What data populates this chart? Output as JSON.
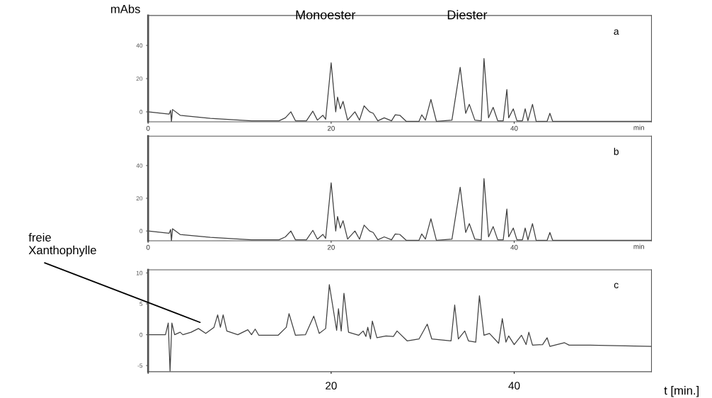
{
  "chart_data": [
    {
      "type": "line",
      "title": "a",
      "ylabel": "mAbs",
      "xlabel": "min",
      "xlim": [
        0,
        55
      ],
      "ylim": [
        -6,
        58
      ],
      "xticks": [
        0,
        20,
        40
      ],
      "yticks": [
        0,
        20,
        40
      ],
      "grid": false,
      "annotations": [
        "Monoester",
        "Diester"
      ],
      "series": [
        {
          "color": "#404040",
          "x": [
            0,
            2.3,
            2.46,
            2.55,
            2.67,
            3.5,
            6.8,
            11.3,
            14.3,
            15.0,
            15.6,
            16.1,
            17.3,
            18.0,
            18.5,
            19.1,
            19.4,
            20.0,
            20.5,
            20.7,
            21.0,
            21.3,
            21.8,
            22.6,
            23.1,
            23.6,
            24.2,
            24.6,
            25.1,
            25.8,
            26.6,
            27.0,
            27.5,
            28.2,
            29.6,
            29.9,
            30.3,
            30.9,
            31.5,
            33.2,
            34.1,
            34.7,
            35.1,
            35.7,
            36.4,
            36.7,
            37.2,
            37.7,
            38.2,
            38.8,
            39.2,
            39.4,
            39.9,
            40.3,
            40.9,
            41.2,
            41.5,
            42.0,
            42.4,
            43.6,
            43.9,
            44.2,
            46.2,
            55
          ],
          "values": [
            0,
            -1.4,
            0.9,
            -6,
            1.4,
            -2.1,
            -3.9,
            -5.4,
            -5.4,
            -3.6,
            0,
            -5.4,
            -5.4,
            0.4,
            -5,
            -2.1,
            -4.5,
            29.5,
            0,
            8.9,
            1.8,
            6.3,
            -5,
            0,
            -5,
            3.6,
            0,
            -0.9,
            -5.4,
            -3.6,
            -5.4,
            -1.8,
            -2.1,
            -5.7,
            -5.7,
            -1.8,
            -5,
            7.5,
            -5.7,
            -5,
            26.8,
            -0.9,
            4.5,
            -5,
            -5.4,
            32.1,
            -3.6,
            2.7,
            -5.4,
            -5.4,
            13.4,
            -3.6,
            1.8,
            -5.4,
            -5.4,
            1.8,
            -5.4,
            4.5,
            -5.7,
            -5.7,
            -0.9,
            -5.7,
            -5.7,
            -5.7
          ]
        }
      ]
    },
    {
      "type": "line",
      "title": "b",
      "xlabel": "min",
      "xlim": [
        0,
        55
      ],
      "ylim": [
        -6,
        58
      ],
      "xticks": [
        0,
        20,
        40
      ],
      "yticks": [
        0,
        20,
        40
      ],
      "grid": false,
      "series": [
        {
          "color": "#404040",
          "x": [
            0,
            2.3,
            2.46,
            2.55,
            2.67,
            3.5,
            6.8,
            11.3,
            14.3,
            15.0,
            15.6,
            16.1,
            17.3,
            18.0,
            18.5,
            19.1,
            19.4,
            20.0,
            20.5,
            20.7,
            21.0,
            21.3,
            21.8,
            22.6,
            23.1,
            23.6,
            24.2,
            24.6,
            25.1,
            25.8,
            26.6,
            27.0,
            27.5,
            28.2,
            29.6,
            29.9,
            30.3,
            30.9,
            31.5,
            33.2,
            34.1,
            34.7,
            35.1,
            35.7,
            36.4,
            36.7,
            37.2,
            37.7,
            38.2,
            38.8,
            39.2,
            39.4,
            39.9,
            40.3,
            40.9,
            41.2,
            41.5,
            42.0,
            42.4,
            43.6,
            43.9,
            44.2,
            46.2,
            55
          ],
          "values": [
            0,
            -1.4,
            0.9,
            -6,
            1.4,
            -2.1,
            -3.9,
            -5.4,
            -5.4,
            -3.6,
            0,
            -5.4,
            -5.4,
            0.4,
            -5,
            -2.1,
            -4.5,
            29.5,
            0,
            8.9,
            1.8,
            6.3,
            -5,
            0,
            -5,
            3.6,
            0,
            -0.9,
            -5.4,
            -3.6,
            -5.4,
            -1.8,
            -2.1,
            -5.7,
            -5.7,
            -1.8,
            -5,
            7.5,
            -5.7,
            -5,
            26.8,
            -0.9,
            4.5,
            -5,
            -5.4,
            32.1,
            -3.6,
            2.7,
            -5.4,
            -5.4,
            13.4,
            -3.6,
            1.8,
            -5.4,
            -5.4,
            1.8,
            -5.4,
            4.5,
            -5.7,
            -5.7,
            -0.9,
            -5.7,
            -5.7,
            -5.7
          ]
        }
      ]
    },
    {
      "type": "line",
      "title": "c",
      "xlabel": "t [min.]",
      "xlim": [
        0,
        55
      ],
      "ylim": [
        -6,
        10.5
      ],
      "xticks": [
        {
          "value": 0,
          "label": null
        },
        20,
        40
      ],
      "yticks": [
        -5,
        0,
        5,
        10
      ],
      "grid": false,
      "annotations": [
        "freie\nXanthophylle"
      ],
      "series": [
        {
          "color": "#404040",
          "x": [
            0,
            1.9,
            2.2,
            2.4,
            2.6,
            2.9,
            3.5,
            3.8,
            4.7,
            5.5,
            6.3,
            7.2,
            7.6,
            7.9,
            8.2,
            8.6,
            9.8,
            10.9,
            11.3,
            11.7,
            12.1,
            14.2,
            15.1,
            15.4,
            16.1,
            17.2,
            18.1,
            18.7,
            19.4,
            19.8,
            20.6,
            20.8,
            21.1,
            21.4,
            21.9,
            23.0,
            23.5,
            23.8,
            24.0,
            24.3,
            24.5,
            25.0,
            26.0,
            26.8,
            27.2,
            28.3,
            29.6,
            30.5,
            31.0,
            33.1,
            33.5,
            33.9,
            34.6,
            35.0,
            35.8,
            36.2,
            36.7,
            37.3,
            38.3,
            38.7,
            39.1,
            39.4,
            40.0,
            40.8,
            41.3,
            41.6,
            42.0,
            43.1,
            43.6,
            43.9,
            45.5,
            46.0,
            48.3,
            55
          ],
          "values": [
            0,
            0,
            1.9,
            -5.9,
            1.9,
            0,
            0.4,
            0,
            0.4,
            1.0,
            0.2,
            1.2,
            3.2,
            1.2,
            3.2,
            0.6,
            0,
            0.8,
            0,
            0.9,
            -0.1,
            -0.1,
            1.2,
            3.4,
            -0.1,
            0,
            3.0,
            0.2,
            1.0,
            8.1,
            0.7,
            4.2,
            0.6,
            6.7,
            0.4,
            -0.1,
            0.6,
            -0.3,
            1.2,
            -0.7,
            2.2,
            -0.5,
            -0.2,
            -0.3,
            0.6,
            -1.0,
            -0.7,
            1.7,
            -0.7,
            -1.0,
            4.8,
            -0.7,
            0.6,
            -1.0,
            -1.2,
            6.3,
            -0.1,
            0.2,
            -1.4,
            2.6,
            -1.2,
            -0.2,
            -1.6,
            -0.1,
            -1.6,
            0.4,
            -1.7,
            -1.6,
            -0.5,
            -1.9,
            -1.3,
            -1.7,
            -1.7,
            -1.9
          ]
        }
      ]
    }
  ]
}
